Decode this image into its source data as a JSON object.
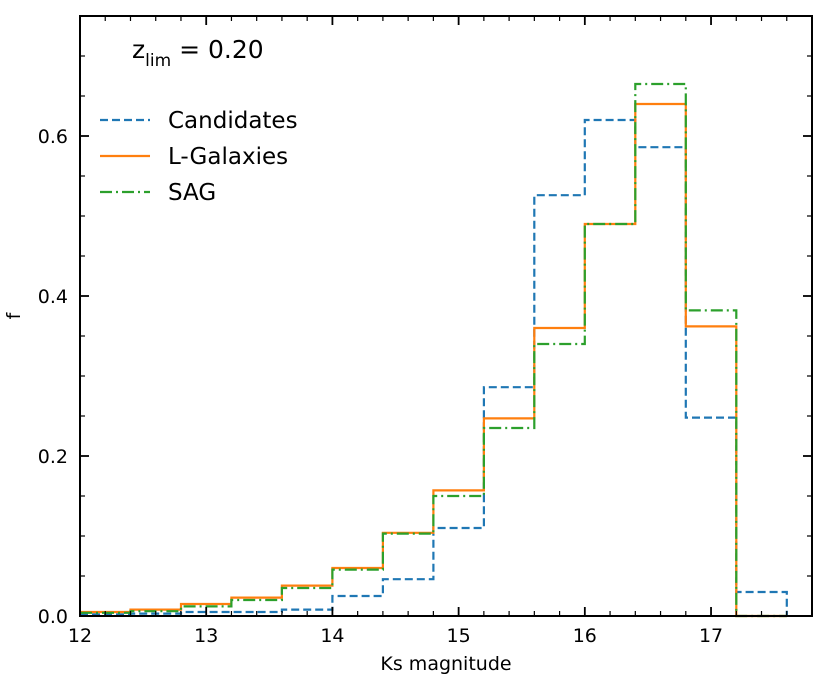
{
  "chart_data": {
    "type": "step-histogram",
    "title": "",
    "annotation": {
      "main": "z",
      "sub": "lim",
      "value": " = 0.20"
    },
    "xlabel": "Ks magnitude",
    "ylabel": "f",
    "xlim": [
      12.0,
      17.8
    ],
    "ylim": [
      0.0,
      0.75
    ],
    "xticks": [
      12,
      13,
      14,
      15,
      16,
      17
    ],
    "yticks": [
      0.0,
      0.2,
      0.4,
      0.6
    ],
    "xtick_labels": [
      "12",
      "13",
      "14",
      "15",
      "16",
      "17"
    ],
    "ytick_labels": [
      "0.0",
      "0.2",
      "0.4",
      "0.6"
    ],
    "grid": false,
    "legend_position": "upper-left",
    "bin_edges": [
      12.0,
      12.4,
      12.8,
      13.2,
      13.6,
      14.0,
      14.4,
      14.8,
      15.2,
      15.6,
      16.0,
      16.4,
      16.8,
      17.2,
      17.6
    ],
    "series": [
      {
        "name": "Candidates",
        "color": "#1f77b4",
        "dash": "8,4",
        "values": [
          0.002,
          0.003,
          0.005,
          0.005,
          0.008,
          0.025,
          0.046,
          0.11,
          0.286,
          0.526,
          0.62,
          0.586,
          0.248,
          0.03
        ]
      },
      {
        "name": "L-Galaxies",
        "color": "#ff7f0e",
        "dash": "",
        "values": [
          0.005,
          0.008,
          0.015,
          0.023,
          0.038,
          0.06,
          0.104,
          0.157,
          0.247,
          0.36,
          0.49,
          0.64,
          0.362,
          0.0
        ]
      },
      {
        "name": "SAG",
        "color": "#2ca02c",
        "dash": "12,4,2,4",
        "values": [
          0.004,
          0.006,
          0.012,
          0.02,
          0.035,
          0.058,
          0.103,
          0.15,
          0.235,
          0.34,
          0.49,
          0.665,
          0.382,
          0.0
        ]
      }
    ]
  }
}
